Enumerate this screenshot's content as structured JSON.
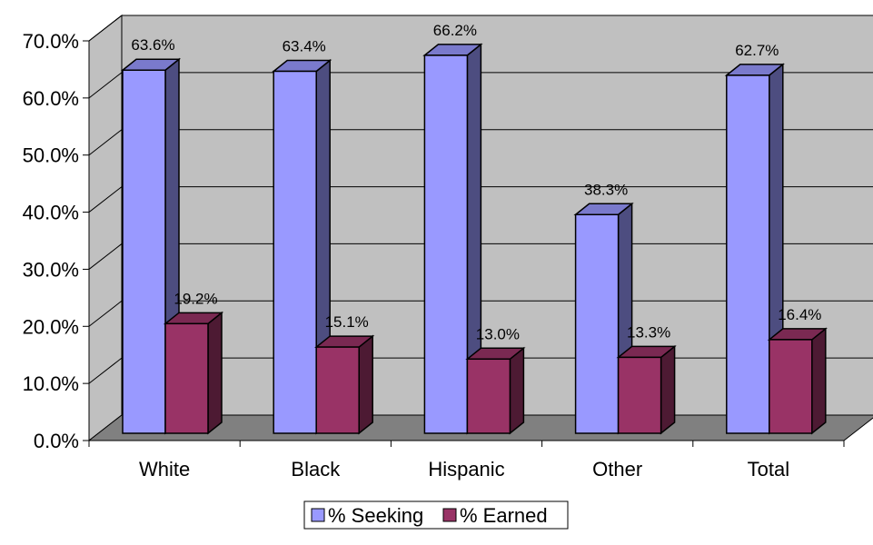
{
  "chart_data": {
    "type": "bar",
    "categories": [
      "White",
      "Black",
      "Hispanic",
      "Other",
      "Total"
    ],
    "series": [
      {
        "name": "% Seeking",
        "values": [
          63.6,
          63.4,
          66.2,
          38.3,
          62.7
        ],
        "labels": [
          "63.6%",
          "63.4%",
          "66.2%",
          "38.3%",
          "62.7%"
        ],
        "color": "#9999FF",
        "side_color": "#4D4D80",
        "top_color": "#7A7ACC"
      },
      {
        "name": "% Earned",
        "values": [
          19.2,
          15.1,
          13.0,
          13.3,
          16.4
        ],
        "labels": [
          "19.2%",
          "15.1%",
          "13.0%",
          "13.3%",
          "16.4%"
        ],
        "color": "#993366",
        "side_color": "#4D1A33",
        "top_color": "#7A2952"
      }
    ],
    "ylim": [
      0,
      70
    ],
    "yticks": [
      "0.0%",
      "10.0%",
      "20.0%",
      "30.0%",
      "40.0%",
      "50.0%",
      "60.0%",
      "70.0%"
    ],
    "grid": true,
    "style": "3d",
    "legend": "bottom-center",
    "wall_color": "#C0C0C0",
    "floor_color": "#808080"
  }
}
